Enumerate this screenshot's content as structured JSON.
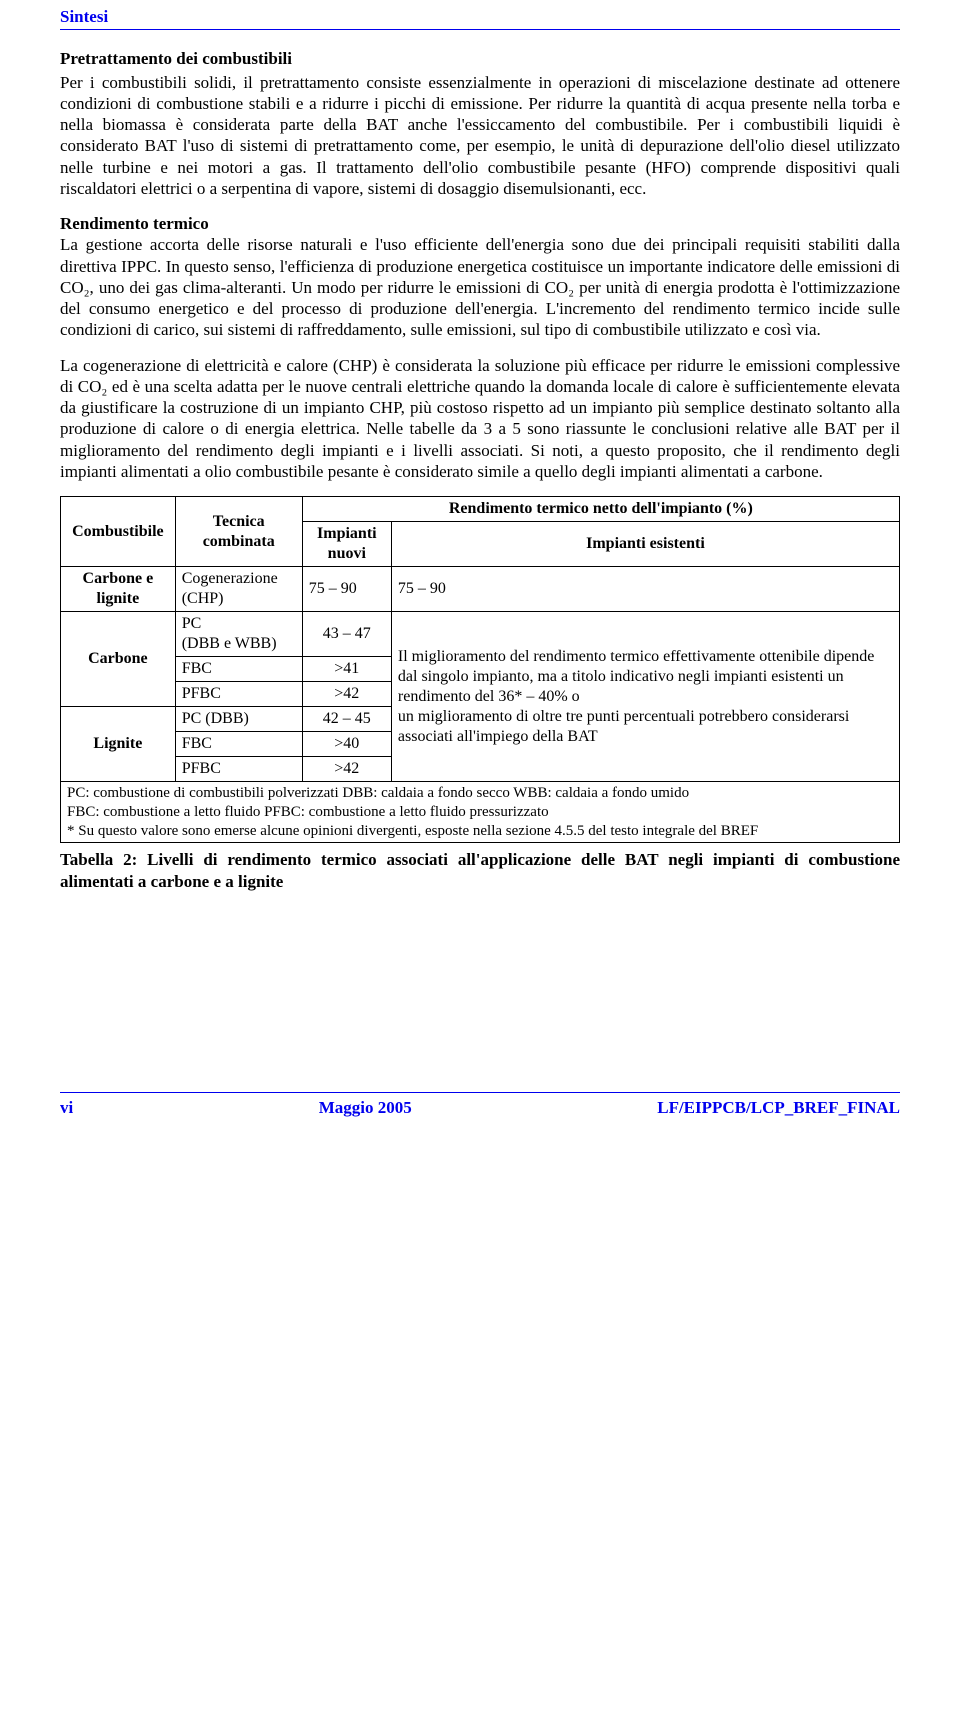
{
  "header": {
    "title": "Sintesi"
  },
  "section1": {
    "title": "Pretrattamento dei combustibili",
    "body": "Per i combustibili solidi, il pretrattamento consiste essenzialmente in operazioni di miscelazione destinate ad ottenere condizioni di combustione stabili e a ridurre i picchi di emissione. Per ridurre la quantità di acqua presente nella torba e nella biomassa è considerata parte della BAT anche l'essiccamento del combustibile. Per i combustibili liquidi è considerato BAT l'uso di sistemi di pretrattamento come, per esempio, le unità di depurazione dell'olio diesel utilizzato nelle turbine e nei motori a gas. Il trattamento dell'olio combustibile pesante (HFO) comprende dispositivi quali riscaldatori elettrici o a serpentina di vapore, sistemi di dosaggio disemulsionanti, ecc."
  },
  "section2": {
    "title": "Rendimento termico",
    "p1": "La gestione accorta delle risorse naturali e l'uso efficiente dell'energia sono due dei principali requisiti stabiliti dalla direttiva IPPC. In questo senso, l'efficienza di produzione energetica costituisce un importante indicatore delle emissioni di CO₂, uno dei gas clima-alteranti. Un modo per ridurre le emissioni di CO₂ per unità di energia prodotta è l'ottimizzazione del consumo energetico e del processo di produzione dell'energia. L'incremento del rendimento termico incide sulle condizioni di carico, sui sistemi di raffreddamento, sulle emissioni, sul tipo di combustibile utilizzato e così via.",
    "p2": "La cogenerazione di elettricità e calore (CHP) è considerata la soluzione più efficace per ridurre le emissioni complessive di CO₂ ed è una scelta adatta per le nuove centrali elettriche quando la domanda locale di calore è sufficientemente elevata da giustificare la costruzione di un impianto CHP, più costoso rispetto ad un impianto più semplice destinato soltanto alla produzione di calore o di energia elettrica. Nelle tabelle da 3 a 5 sono riassunte le conclusioni relative alle BAT per il miglioramento del rendimento degli impianti e i livelli associati. Si noti, a questo proposito, che il rendimento degli impianti alimentati a olio combustibile pesante è considerato simile a quello degli impianti alimentati a carbone."
  },
  "table": {
    "head": {
      "combustibile": "Combustibile",
      "tecnica": "Tecnica combinata",
      "rend_title": "Rendimento termico netto dell'impianto (%)",
      "nuovi": "Impianti nuovi",
      "esistenti": "Impianti esistenti"
    },
    "rows": {
      "r1": {
        "fuel": "Carbone e lignite",
        "tech": "Cogenerazione (CHP)",
        "new": "75 – 90",
        "exist": "75 – 90"
      },
      "r2": {
        "fuel": "Carbone",
        "tech": "PC\n(DBB e WBB)",
        "new": "43 – 47"
      },
      "r3": {
        "tech": "FBC",
        "new": ">41"
      },
      "r4": {
        "tech": "PFBC",
        "new": ">42"
      },
      "r5": {
        "fuel": "Lignite",
        "tech": "PC (DBB)",
        "new": "42 – 45"
      },
      "r6": {
        "tech": "FBC",
        "new": ">40"
      },
      "r7": {
        "tech": "PFBC",
        "new": ">42"
      },
      "exist_note": "Il miglioramento del rendimento termico effettivamente ottenibile dipende dal singolo impianto, ma a titolo indicativo negli impianti esistenti un rendimento del 36* – 40% o\nun miglioramento di oltre tre punti percentuali potrebbero considerarsi associati all'impiego della BAT"
    },
    "footnote": "PC: combustione di combustibili polverizzati        DBB: caldaia a fondo secco   WBB: caldaia a fondo umido\nFBC: combustione a letto fluido            PFBC: combustione a letto fluido pressurizzato\n* Su questo valore sono emerse alcune opinioni divergenti, esposte nella sezione 4.5.5 del testo integrale del BREF",
    "caption": "Tabella 2: Livelli di rendimento termico associati all'applicazione delle BAT negli impianti di combustione alimentati a carbone e a lignite"
  },
  "footer": {
    "left": "vi",
    "center": "Maggio 2005",
    "right": "LF/EIPPCB/LCP_BREF_FINAL"
  }
}
